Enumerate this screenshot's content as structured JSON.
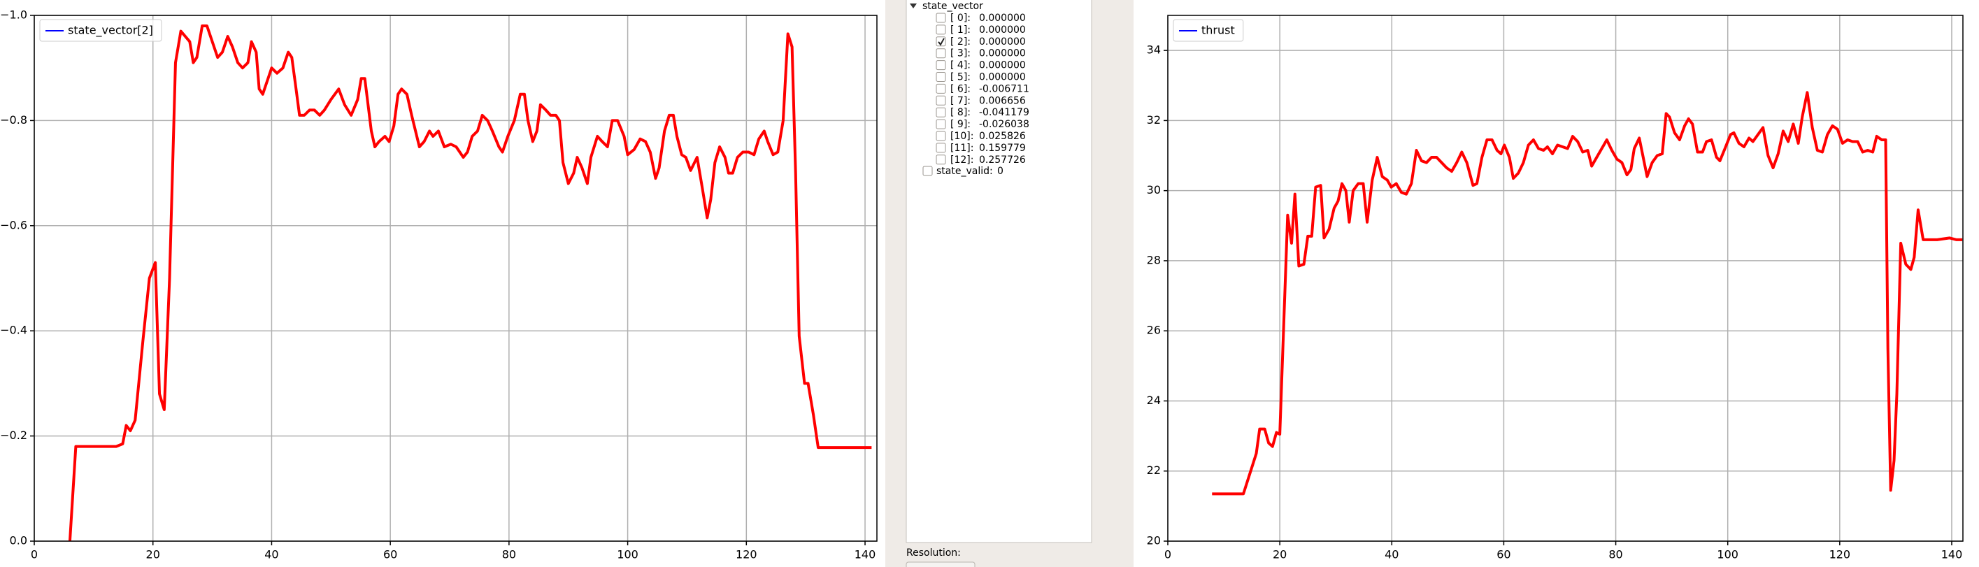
{
  "chart_data": [
    {
      "type": "line",
      "legend": "upper left",
      "legend_color": "#0000ff",
      "grid": true,
      "xlim": [
        0,
        142
      ],
      "xticks": [
        0,
        20,
        40,
        60,
        80,
        100,
        120,
        140
      ],
      "ylim": [
        0,
        -1
      ],
      "yticks": [
        {
          "value": 0,
          "label": "0.0"
        },
        {
          "value": -0.2,
          "label": "−0.2"
        },
        {
          "value": -0.4,
          "label": "−0.4"
        },
        {
          "value": -0.6,
          "label": "−0.6"
        },
        {
          "value": -0.8,
          "label": "−0.8"
        },
        {
          "value": -1,
          "label": "−1.0"
        }
      ],
      "x": [
        6,
        7,
        13.8,
        14.9,
        15.5,
        16.2,
        17,
        18.3,
        19.4,
        20.4,
        21.1,
        21.9,
        22.8,
        23.8,
        24.7,
        26.2,
        26.8,
        27.4,
        28.3,
        29.1,
        30.9,
        31.7,
        32.6,
        33.4,
        34.3,
        35.1,
        36,
        36.6,
        37.4,
        37.9,
        38.5,
        40,
        40.9,
        41.9,
        42.8,
        43.4,
        44,
        44.7,
        45.5,
        46.4,
        47.2,
        48.1,
        48.9,
        50,
        51.3,
        52.3,
        53.4,
        54.5,
        55.1,
        55.7,
        56.8,
        57.4,
        58.1,
        59.1,
        59.8,
        60.6,
        61.3,
        61.9,
        62.8,
        63.6,
        64.9,
        65.7,
        66.6,
        67.2,
        68.1,
        69.1,
        70.2,
        71.1,
        71.7,
        72.3,
        73,
        73.8,
        74.7,
        75.5,
        76.4,
        77.2,
        78.3,
        78.9,
        79.8,
        80.9,
        81.9,
        82.6,
        83.2,
        84,
        84.7,
        85.3,
        86.2,
        87,
        87.9,
        88.5,
        89.1,
        90,
        90.9,
        91.5,
        92.3,
        93.2,
        93.8,
        94.9,
        95.7,
        96.6,
        97.4,
        98.3,
        99.4,
        100,
        101.1,
        102.1,
        103,
        103.8,
        104.7,
        105.3,
        106.2,
        107,
        107.7,
        108.3,
        109.1,
        109.8,
        110.6,
        111.7,
        112.6,
        113.4,
        114,
        114.7,
        115.5,
        116.4,
        117,
        117.7,
        118.5,
        119.4,
        120.4,
        121.3,
        122.1,
        123,
        123.6,
        124.5,
        125.3,
        126.2,
        127,
        127.7,
        128.3,
        128.9,
        129.8,
        130.4,
        131.3,
        132.1,
        141.1
      ],
      "series": [
        {
          "name": "state_vector[2]",
          "color": "#ff0000",
          "values": [
            0,
            -0.18,
            -0.18,
            -0.185,
            -0.22,
            -0.21,
            -0.23,
            -0.38,
            -0.5,
            -0.53,
            -0.28,
            -0.25,
            -0.5,
            -0.91,
            -0.97,
            -0.95,
            -0.91,
            -0.92,
            -0.98,
            -0.98,
            -0.92,
            -0.93,
            -0.96,
            -0.94,
            -0.91,
            -0.9,
            -0.91,
            -0.95,
            -0.93,
            -0.86,
            -0.85,
            -0.9,
            -0.89,
            -0.9,
            -0.93,
            -0.92,
            -0.87,
            -0.81,
            -0.81,
            -0.82,
            -0.82,
            -0.81,
            -0.82,
            -0.84,
            -0.86,
            -0.83,
            -0.81,
            -0.84,
            -0.88,
            -0.88,
            -0.78,
            -0.75,
            -0.76,
            -0.77,
            -0.76,
            -0.79,
            -0.85,
            -0.86,
            -0.85,
            -0.81,
            -0.75,
            -0.76,
            -0.78,
            -0.77,
            -0.78,
            -0.75,
            -0.755,
            -0.75,
            -0.74,
            -0.73,
            -0.74,
            -0.77,
            -0.78,
            -0.81,
            -0.8,
            -0.78,
            -0.75,
            -0.74,
            -0.77,
            -0.8,
            -0.85,
            -0.85,
            -0.8,
            -0.76,
            -0.78,
            -0.83,
            -0.82,
            -0.81,
            -0.81,
            -0.8,
            -0.72,
            -0.68,
            -0.7,
            -0.73,
            -0.71,
            -0.68,
            -0.73,
            -0.77,
            -0.76,
            -0.75,
            -0.8,
            -0.8,
            -0.77,
            -0.735,
            -0.745,
            -0.765,
            -0.76,
            -0.74,
            -0.69,
            -0.71,
            -0.78,
            -0.81,
            -0.81,
            -0.77,
            -0.735,
            -0.73,
            -0.705,
            -0.73,
            -0.67,
            -0.615,
            -0.65,
            -0.72,
            -0.75,
            -0.73,
            -0.7,
            -0.7,
            -0.73,
            -0.74,
            -0.74,
            -0.735,
            -0.765,
            -0.78,
            -0.76,
            -0.735,
            -0.74,
            -0.8,
            -0.965,
            -0.94,
            -0.7,
            -0.39,
            -0.3,
            -0.3,
            -0.24,
            -0.178,
            -0.178
          ]
        }
      ]
    },
    {
      "type": "line",
      "legend": "upper left",
      "legend_color": "#0000ff",
      "grid": true,
      "xlim": [
        0,
        142
      ],
      "xticks": [
        0,
        20,
        40,
        60,
        80,
        100,
        120,
        140
      ],
      "ylim": [
        20,
        35
      ],
      "yticks": [
        20,
        22,
        24,
        26,
        28,
        30,
        32,
        34
      ],
      "x": [
        7.9,
        13.5,
        14.6,
        15.8,
        16.4,
        17.3,
        18,
        18.7,
        19.4,
        20,
        21.4,
        22.1,
        22.7,
        23.4,
        24.3,
        25,
        25.7,
        26.4,
        27.3,
        27.9,
        28.8,
        29.7,
        30.4,
        31.1,
        31.8,
        32.4,
        33.1,
        34,
        34.9,
        35.6,
        36.5,
        37.4,
        38.3,
        39.2,
        39.9,
        40.8,
        41.7,
        42.6,
        43.5,
        44.4,
        45.3,
        46.2,
        47.1,
        48,
        48.9,
        49.8,
        50.7,
        51.6,
        52.5,
        53.4,
        54.5,
        55.2,
        56.1,
        57,
        57.9,
        58.8,
        59.5,
        60.1,
        61,
        61.7,
        62.6,
        63.5,
        64.4,
        65.3,
        66.2,
        67.1,
        67.8,
        68.7,
        69.6,
        70.5,
        71.4,
        72.3,
        73.2,
        74.1,
        75,
        75.7,
        76.6,
        77.5,
        78.4,
        79.3,
        80.2,
        81.1,
        82,
        82.7,
        83.3,
        84.2,
        84.9,
        85.6,
        86.5,
        87.4,
        88.3,
        89,
        89.6,
        90.5,
        91.4,
        92.3,
        93,
        93.7,
        94.6,
        95.5,
        96.2,
        97.1,
        98,
        98.6,
        99.5,
        100.5,
        101.1,
        102,
        102.9,
        103.8,
        104.5,
        105.4,
        106.3,
        107.2,
        108.1,
        109,
        109.9,
        110.8,
        111.7,
        112.6,
        113.3,
        114.2,
        115.1,
        116,
        116.9,
        117.8,
        118.7,
        119.6,
        120.5,
        121.4,
        122.3,
        123.2,
        124.1,
        125,
        125.9,
        126.6,
        127.5,
        128.2,
        128.6,
        129.1,
        129.7,
        130.2,
        130.9,
        131.8,
        132.7,
        133.3,
        134,
        134.9,
        137.4,
        139.6,
        140.8,
        141.9
      ],
      "series": [
        {
          "name": "thrust",
          "color": "#ff0000",
          "values": [
            21.35,
            21.35,
            21.9,
            22.5,
            23.2,
            23.2,
            22.8,
            22.7,
            23.1,
            23.05,
            29.3,
            28.5,
            29.9,
            27.85,
            27.9,
            28.7,
            28.7,
            30.1,
            30.15,
            28.65,
            28.9,
            29.5,
            29.7,
            30.2,
            30,
            29.1,
            30,
            30.2,
            30.2,
            29.1,
            30.3,
            30.95,
            30.4,
            30.3,
            30.1,
            30.2,
            29.95,
            29.9,
            30.2,
            31.15,
            30.85,
            30.8,
            30.95,
            30.95,
            30.8,
            30.65,
            30.55,
            30.8,
            31.1,
            30.8,
            30.15,
            30.2,
            30.95,
            31.45,
            31.45,
            31.15,
            31.05,
            31.3,
            30.95,
            30.35,
            30.5,
            30.8,
            31.3,
            31.45,
            31.2,
            31.15,
            31.25,
            31.05,
            31.3,
            31.25,
            31.2,
            31.55,
            31.4,
            31.1,
            31.15,
            30.7,
            30.95,
            31.2,
            31.45,
            31.15,
            30.9,
            30.8,
            30.45,
            30.6,
            31.2,
            31.5,
            30.95,
            30.4,
            30.8,
            31,
            31.05,
            32.2,
            32.1,
            31.65,
            31.45,
            31.85,
            32.05,
            31.9,
            31.1,
            31.1,
            31.4,
            31.45,
            30.95,
            30.85,
            31.2,
            31.6,
            31.65,
            31.35,
            31.25,
            31.5,
            31.4,
            31.6,
            31.8,
            31,
            30.65,
            31.05,
            31.7,
            31.4,
            31.9,
            31.35,
            32.1,
            32.8,
            31.8,
            31.15,
            31.1,
            31.6,
            31.85,
            31.75,
            31.35,
            31.45,
            31.4,
            31.4,
            31.1,
            31.15,
            31.1,
            31.55,
            31.45,
            31.45,
            25.5,
            21.45,
            22.3,
            24.2,
            28.5,
            27.9,
            27.75,
            28.1,
            29.45,
            28.6,
            28.6,
            28.65,
            28.6,
            28.6
          ]
        }
      ]
    }
  ],
  "tree": {
    "title": "state_vector",
    "items": [
      {
        "label": "[ 0]:",
        "value": "0.000000",
        "checked": false
      },
      {
        "label": "[ 1]:",
        "value": "0.000000",
        "checked": false
      },
      {
        "label": "[ 2]:",
        "value": "0.000000",
        "checked": true
      },
      {
        "label": "[ 3]:",
        "value": "0.000000",
        "checked": false
      },
      {
        "label": "[ 4]:",
        "value": "0.000000",
        "checked": false
      },
      {
        "label": "[ 5]:",
        "value": "0.000000",
        "checked": false
      },
      {
        "label": "[ 6]:",
        "value": "-0.006711",
        "checked": false
      },
      {
        "label": "[ 7]:",
        "value": "0.006656",
        "checked": false
      },
      {
        "label": "[ 8]:",
        "value": "-0.041179",
        "checked": false
      },
      {
        "label": "[ 9]:",
        "value": "-0.026038",
        "checked": false
      },
      {
        "label": "[10]:",
        "value": "0.025826",
        "checked": false
      },
      {
        "label": "[11]:",
        "value": "0.159779",
        "checked": false
      },
      {
        "label": "[12]:",
        "value": "0.257726",
        "checked": false
      }
    ],
    "extra": {
      "label": "state_valid:",
      "value": "0",
      "checked": false
    }
  },
  "resolution_label": "Resolution:"
}
